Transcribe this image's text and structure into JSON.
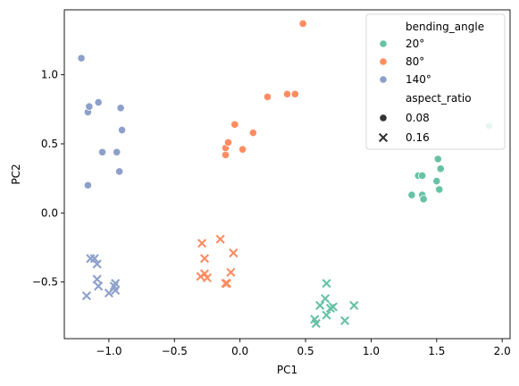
{
  "chart_data": {
    "type": "scatter",
    "title": "",
    "xlabel": "PC1",
    "ylabel": "PC2",
    "xlim": [
      -1.34,
      2.06
    ],
    "ylim": [
      -0.91,
      1.47
    ],
    "xticks": [
      -1.0,
      -0.5,
      0.0,
      0.5,
      1.0,
      1.5,
      2.0
    ],
    "xtick_labels": [
      "−1.0",
      "−0.5",
      "0.0",
      "0.5",
      "1.0",
      "1.5",
      "2.0"
    ],
    "yticks": [
      -0.5,
      0.0,
      0.5,
      1.0
    ],
    "ytick_labels": [
      "−0.5",
      "0.0",
      "0.5",
      "1.0"
    ],
    "grid": false,
    "legend": {
      "placement": "top-right",
      "hue_title": "bending_angle",
      "style_title": "aspect_ratio",
      "hue_entries": [
        {
          "label": "20°",
          "color": "#66c2a5"
        },
        {
          "label": "80°",
          "color": "#fc8d62"
        },
        {
          "label": "140°",
          "color": "#8da0cb"
        }
      ],
      "style_entries": [
        {
          "label": "0.08",
          "marker": "circle"
        },
        {
          "label": "0.16",
          "marker": "x"
        }
      ]
    },
    "series": [
      {
        "bending_angle": "20°",
        "aspect_ratio": "0.08",
        "color": "#66c2a5",
        "marker": "circle",
        "points": [
          [
            1.31,
            0.13
          ],
          [
            1.36,
            0.27
          ],
          [
            1.39,
            0.27
          ],
          [
            1.39,
            0.13
          ],
          [
            1.4,
            0.1
          ],
          [
            1.5,
            0.23
          ],
          [
            1.51,
            0.39
          ],
          [
            1.52,
            0.17
          ],
          [
            1.53,
            0.32
          ],
          [
            1.9,
            0.63
          ]
        ]
      },
      {
        "bending_angle": "20°",
        "aspect_ratio": "0.16",
        "color": "#66c2a5",
        "marker": "x",
        "points": [
          [
            0.57,
            -0.77
          ],
          [
            0.58,
            -0.8
          ],
          [
            0.61,
            -0.67
          ],
          [
            0.65,
            -0.62
          ],
          [
            0.66,
            -0.51
          ],
          [
            0.66,
            -0.74
          ],
          [
            0.69,
            -0.69
          ],
          [
            0.71,
            -0.68
          ],
          [
            0.8,
            -0.78
          ],
          [
            0.87,
            -0.67
          ]
        ]
      },
      {
        "bending_angle": "80°",
        "aspect_ratio": "0.08",
        "color": "#fc8d62",
        "marker": "circle",
        "points": [
          [
            -0.11,
            0.42
          ],
          [
            -0.11,
            0.47
          ],
          [
            -0.09,
            0.51
          ],
          [
            -0.04,
            0.64
          ],
          [
            0.02,
            0.46
          ],
          [
            0.1,
            0.58
          ],
          [
            0.21,
            0.84
          ],
          [
            0.36,
            0.86
          ],
          [
            0.42,
            0.86
          ],
          [
            0.48,
            1.37
          ]
        ]
      },
      {
        "bending_angle": "80°",
        "aspect_ratio": "0.16",
        "color": "#fc8d62",
        "marker": "x",
        "points": [
          [
            -0.3,
            -0.46
          ],
          [
            -0.29,
            -0.22
          ],
          [
            -0.27,
            -0.44
          ],
          [
            -0.27,
            -0.33
          ],
          [
            -0.25,
            -0.47
          ],
          [
            -0.15,
            -0.19
          ],
          [
            -0.11,
            -0.51
          ],
          [
            -0.1,
            -0.51
          ],
          [
            -0.07,
            -0.43
          ],
          [
            -0.05,
            -0.29
          ]
        ]
      },
      {
        "bending_angle": "140°",
        "aspect_ratio": "0.08",
        "color": "#8da0cb",
        "marker": "circle",
        "points": [
          [
            -1.21,
            1.12
          ],
          [
            -1.16,
            0.73
          ],
          [
            -1.15,
            0.77
          ],
          [
            -1.16,
            0.2
          ],
          [
            -1.08,
            0.8
          ],
          [
            -1.05,
            0.44
          ],
          [
            -0.94,
            0.44
          ],
          [
            -0.92,
            0.3
          ],
          [
            -0.91,
            0.76
          ],
          [
            -0.9,
            0.6
          ]
        ]
      },
      {
        "bending_angle": "140°",
        "aspect_ratio": "0.16",
        "color": "#8da0cb",
        "marker": "x",
        "points": [
          [
            -1.17,
            -0.6
          ],
          [
            -1.14,
            -0.33
          ],
          [
            -1.11,
            -0.33
          ],
          [
            -1.09,
            -0.37
          ],
          [
            -1.09,
            -0.48
          ],
          [
            -1.08,
            -0.53
          ],
          [
            -1.0,
            -0.58
          ],
          [
            -0.96,
            -0.53
          ],
          [
            -0.95,
            -0.51
          ],
          [
            -0.95,
            -0.56
          ]
        ]
      }
    ]
  }
}
